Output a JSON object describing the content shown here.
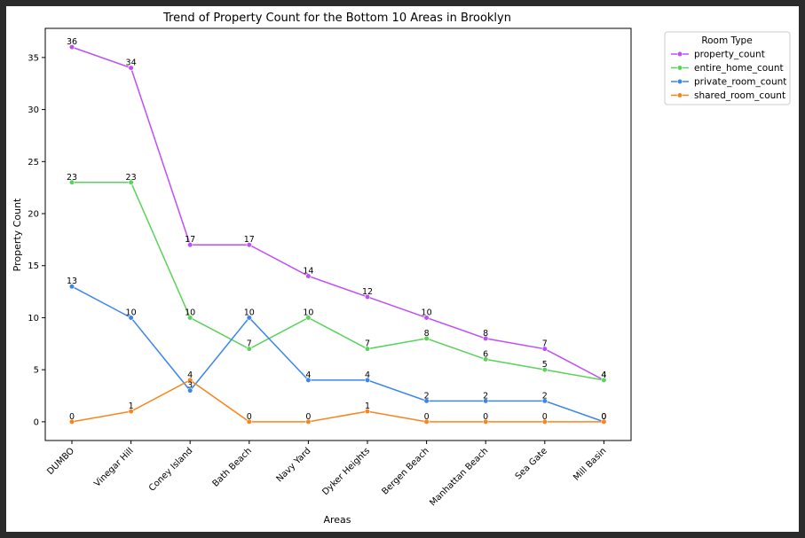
{
  "chart_data": {
    "type": "line",
    "title": "Trend of Property Count for the Bottom 10 Areas in Brooklyn",
    "xlabel": "Areas",
    "ylabel": "Property Count",
    "categories": [
      "DUMBO",
      "Vinegar Hill",
      "Coney Island",
      "Bath Beach",
      "Navy Yard",
      "Dyker Heights",
      "Bergen Beach",
      "Manhattan Beach",
      "Sea Gate",
      "Mill Basin"
    ],
    "yticks": [
      0,
      5,
      10,
      15,
      20,
      25,
      30,
      35
    ],
    "ylim": [
      -1.8,
      37.8
    ],
    "grid": false,
    "legend": {
      "title": "Room Type",
      "placement": "outside-top-right"
    },
    "series": [
      {
        "name": "property_count",
        "color": "#c04dfa",
        "values": [
          36,
          34,
          17,
          17,
          14,
          12,
          10,
          8,
          7,
          4
        ]
      },
      {
        "name": "entire_home_count",
        "color": "#5ad35a",
        "values": [
          23,
          23,
          10,
          7,
          10,
          7,
          8,
          6,
          5,
          4
        ]
      },
      {
        "name": "private_room_count",
        "color": "#3b86ee",
        "values": [
          13,
          10,
          3,
          10,
          4,
          4,
          2,
          2,
          2,
          0
        ]
      },
      {
        "name": "shared_room_count",
        "color": "#f98419",
        "values": [
          0,
          1,
          4,
          0,
          0,
          1,
          0,
          0,
          0,
          0
        ]
      }
    ]
  }
}
